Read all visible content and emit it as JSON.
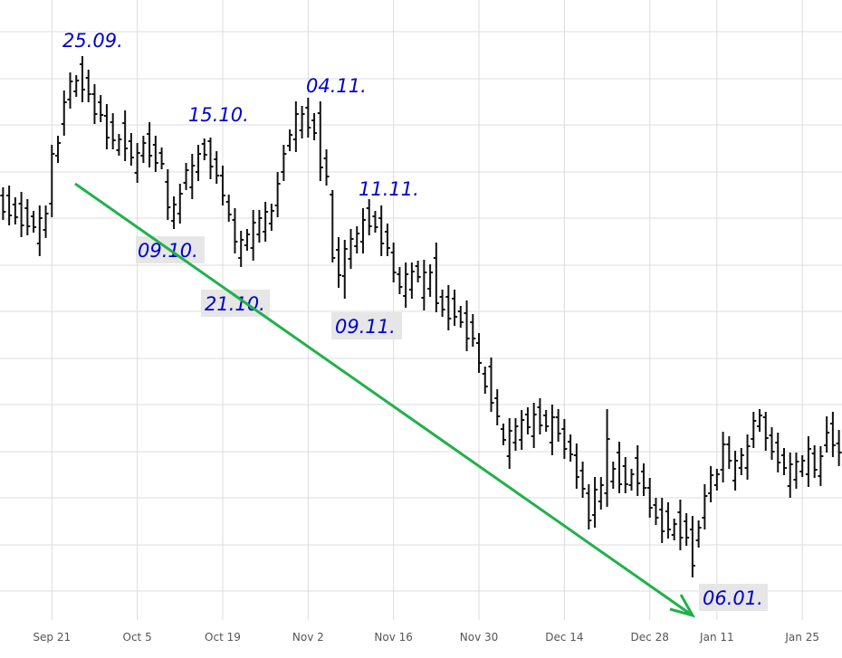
{
  "chart_data": {
    "type": "ohlc",
    "categories": [
      null,
      null,
      null,
      null,
      null,
      null,
      null,
      null,
      "Sep 21",
      null,
      null,
      null,
      null,
      null,
      null,
      null,
      null,
      null,
      null,
      null,
      null,
      null,
      "Oct 5",
      null,
      null,
      null,
      null,
      null,
      null,
      null,
      null,
      null,
      null,
      null,
      null,
      null,
      "Oct 19",
      null,
      null,
      null,
      null,
      null,
      null,
      null,
      null,
      null,
      null,
      null,
      null,
      null,
      "Nov 2",
      null,
      null,
      null,
      null,
      null,
      null,
      null,
      null,
      null,
      null,
      null,
      null,
      null,
      "Nov 16",
      null,
      null,
      null,
      null,
      null,
      null,
      null,
      null,
      null,
      null,
      null,
      null,
      null,
      "Nov 30",
      null,
      null,
      null,
      null,
      null,
      null,
      null,
      null,
      null,
      null,
      null,
      null,
      null,
      "Dec 14",
      null,
      null,
      null,
      null,
      null,
      null,
      null,
      null,
      null,
      null,
      null,
      null,
      null,
      "Dec 28",
      null,
      null,
      null,
      null,
      null,
      null,
      null,
      null,
      null,
      null,
      "Jan 11",
      null,
      null,
      null,
      null,
      null,
      null,
      null,
      null,
      null,
      null,
      null,
      null,
      null,
      "Jan 25",
      null,
      null,
      null,
      null,
      null,
      null
    ],
    "open": [
      469,
      469,
      459,
      460,
      455,
      446,
      416,
      431,
      460,
      513,
      548,
      575,
      584,
      614,
      599,
      581,
      572,
      557,
      550,
      519,
      549,
      529,
      494,
      513,
      537,
      525,
      516,
      484,
      441,
      449,
      483,
      478,
      495,
      526,
      529,
      509,
      491,
      462,
      442,
      400,
      414,
      411,
      426,
      429,
      438,
      458,
      495,
      524,
      531,
      541,
      566,
      552,
      560,
      510,
      470,
      409,
      380,
      399,
      413,
      418,
      455,
      446,
      444,
      429,
      406,
      382,
      358,
      365,
      391,
      356,
      366,
      400,
      357,
      357,
      355,
      341,
      339,
      329,
      306,
      272,
      280,
      245,
      211,
      181,
      196,
      199,
      227,
      203,
      235,
      226,
      196,
      224,
      211,
      197,
      182,
      165,
      140,
      116,
      131,
      140,
      153,
      185,
      170,
      149,
      179,
      164,
      146,
      127,
      122,
      120,
      94,
      119,
      109,
      100,
      88,
      113,
      140,
      149,
      166,
      194,
      154,
      168,
      168,
      200,
      214,
      224,
      204,
      196,
      182,
      148,
      155,
      164,
      161,
      184,
      159,
      193,
      217,
      195
    ],
    "high": [
      478,
      480,
      467,
      473,
      465,
      452,
      458,
      458,
      525,
      535,
      585,
      605,
      602,
      623,
      608,
      592,
      580,
      570,
      560,
      537,
      563,
      538,
      527,
      535,
      550,
      535,
      522,
      498,
      468,
      482,
      505,
      515,
      525,
      532,
      533,
      518,
      502,
      470,
      455,
      430,
      432,
      453,
      453,
      462,
      460,
      495,
      525,
      542,
      573,
      568,
      577,
      560,
      573,
      520,
      475,
      423,
      420,
      432,
      435,
      455,
      465,
      452,
      458,
      438,
      417,
      390,
      395,
      395,
      397,
      398,
      393,
      417,
      365,
      370,
      365,
      347,
      353,
      338,
      317,
      280,
      290,
      255,
      217,
      223,
      223,
      232,
      235,
      240,
      245,
      232,
      238,
      233,
      222,
      205,
      195,
      175,
      150,
      158,
      158,
      233,
      175,
      197,
      180,
      167,
      193,
      173,
      157,
      135,
      135,
      130,
      112,
      133,
      118,
      115,
      110,
      150,
      170,
      167,
      208,
      203,
      187,
      190,
      205,
      230,
      233,
      230,
      213,
      207,
      190,
      185,
      185,
      182,
      203,
      193,
      192,
      225,
      230,
      210
    ],
    "low": [
      442,
      436,
      437,
      423,
      425,
      428,
      402,
      422,
      445,
      505,
      535,
      565,
      578,
      572,
      572,
      548,
      550,
      520,
      520,
      513,
      507,
      502,
      483,
      505,
      500,
      495,
      498,
      442,
      432,
      438,
      475,
      465,
      485,
      508,
      487,
      482,
      458,
      440,
      405,
      390,
      408,
      397,
      417,
      418,
      430,
      445,
      485,
      518,
      517,
      532,
      533,
      530,
      485,
      480,
      395,
      367,
      355,
      388,
      405,
      405,
      425,
      428,
      402,
      402,
      373,
      360,
      345,
      355,
      373,
      342,
      357,
      340,
      335,
      320,
      325,
      323,
      297,
      302,
      273,
      250,
      230,
      215,
      193,
      167,
      187,
      188,
      205,
      190,
      205,
      208,
      182,
      197,
      178,
      175,
      145,
      135,
      100,
      102,
      122,
      125,
      145,
      140,
      140,
      143,
      137,
      137,
      113,
      105,
      85,
      90,
      88,
      77,
      82,
      47,
      80,
      100,
      130,
      143,
      152,
      167,
      143,
      160,
      155,
      190,
      208,
      187,
      177,
      163,
      160,
      135,
      145,
      158,
      147,
      157,
      148,
      185,
      180,
      170
    ],
    "close": [
      451,
      447,
      445,
      436,
      435,
      434,
      444,
      449,
      515,
      527,
      572,
      595,
      596,
      586,
      581,
      559,
      558,
      533,
      530,
      531,
      521,
      511,
      516,
      527,
      513,
      505,
      504,
      456,
      459,
      471,
      497,
      502,
      515,
      514,
      501,
      491,
      469,
      448,
      418,
      420,
      426,
      439,
      444,
      451,
      452,
      482,
      515,
      536,
      559,
      559,
      544,
      538,
      500,
      490,
      400,
      381,
      410,
      421,
      427,
      442,
      435,
      434,
      416,
      411,
      384,
      368,
      382,
      385,
      379,
      384,
      384,
      350,
      343,
      333,
      335,
      329,
      311,
      311,
      284,
      258,
      240,
      225,
      199,
      209,
      214,
      221,
      213,
      227,
      215,
      214,
      224,
      206,
      189,
      183,
      158,
      145,
      110,
      144,
      149,
      200,
      167,
      150,
      150,
      161,
      151,
      146,
      124,
      113,
      98,
      100,
      106,
      91,
      91,
      60,
      102,
      137,
      160,
      161,
      194,
      176,
      176,
      182,
      192,
      220,
      226,
      201,
      186,
      174,
      168,
      172,
      175,
      176,
      189,
      166,
      181,
      207,
      193,
      185
    ],
    "color": "#111111",
    "ylim": [
      0,
      685
    ],
    "yticks": [
      32,
      83,
      135,
      186,
      238,
      289,
      341,
      392,
      444,
      495,
      547,
      598,
      650
    ],
    "grid": true,
    "annotations": [
      "25.09.",
      "15.10.",
      "04.11.",
      "11.11.",
      "09.10.",
      "21.10.",
      "09.11.",
      "06.01."
    ],
    "arrow_color": "#22b04b"
  }
}
